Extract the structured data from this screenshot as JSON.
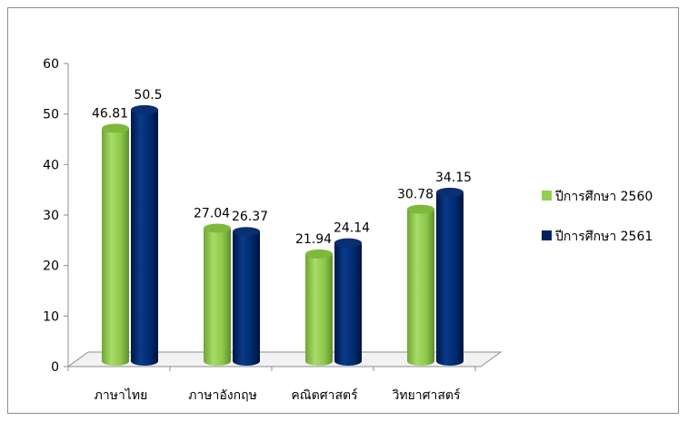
{
  "chart_data": {
    "type": "bar",
    "categories": [
      "ภาษาไทย",
      "ภาษาอังกฤษ",
      "คณิตศาสตร์",
      "วิทยาศาสตร์"
    ],
    "series": [
      {
        "name": "ปีการศึกษา 2560",
        "values": [
          46.81,
          27.04,
          21.94,
          30.78
        ],
        "color": "#92d050"
      },
      {
        "name": "ปีการศึกษา 2561",
        "values": [
          50.5,
          26.37,
          24.14,
          34.15
        ],
        "color": "#002060"
      }
    ],
    "value_labels": [
      [
        "46.81",
        "27.04",
        "21.94",
        "30.78"
      ],
      [
        "50.5",
        "26.37",
        "24.14",
        "34.15"
      ]
    ],
    "y_ticks": [
      "0",
      "10",
      "20",
      "30",
      "40",
      "50",
      "60"
    ],
    "ylim": [
      0,
      60
    ],
    "legend_position": "right",
    "grid": false,
    "style": "3d-cylinder"
  }
}
